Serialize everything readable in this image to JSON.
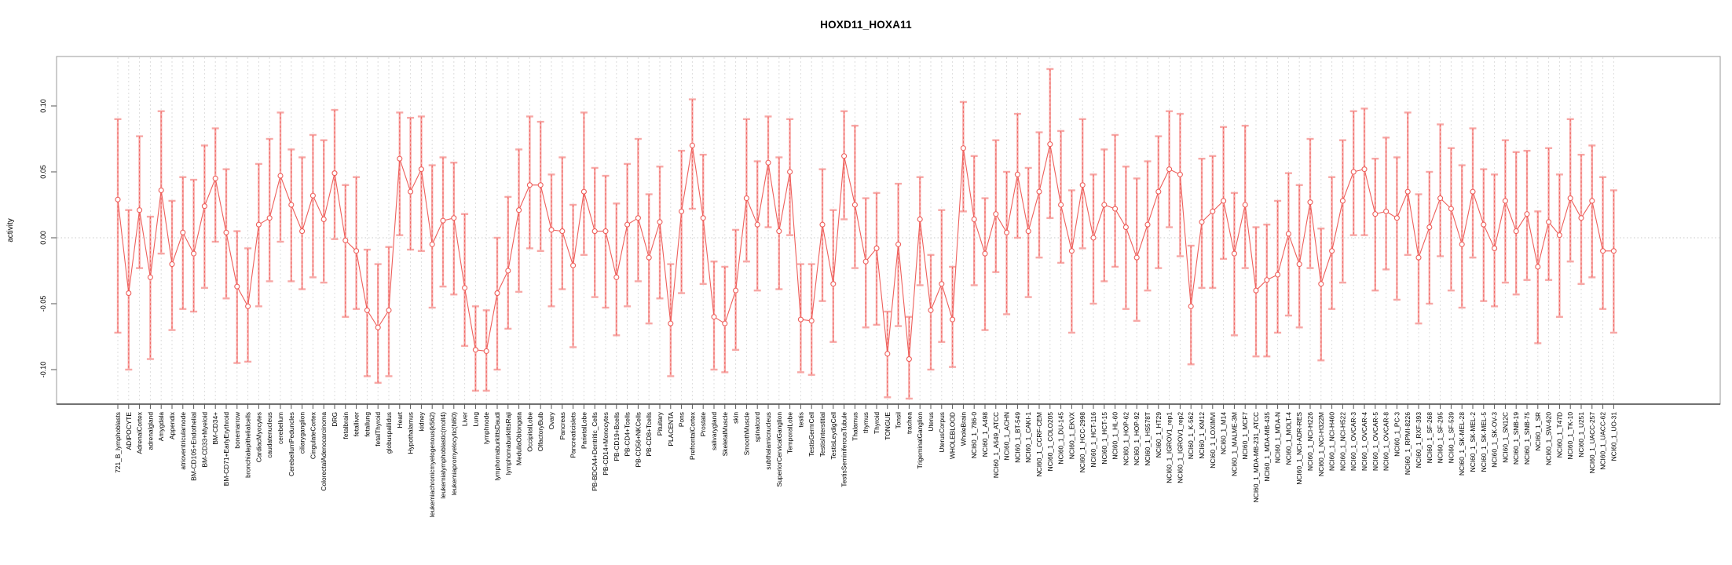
{
  "figure": {
    "title": "HOXD11_HOXA11"
  },
  "chart_data": {
    "type": "line",
    "title": "HOXD11_HOXA11",
    "xlabel": "",
    "ylabel": "activity",
    "ylim": [
      -0.126,
      0.138
    ],
    "yticks": [
      -0.1,
      -0.05,
      0.0,
      0.05,
      0.1
    ],
    "ytick_labels": [
      "-0.10",
      "-0.05",
      "0.00",
      "0.05",
      "0.10"
    ],
    "legend": "none",
    "marker": "open-circle",
    "error_bars": true,
    "grid": {
      "vertical_dashed_per_category": true,
      "dotted_zero_line": true
    },
    "colors": {
      "series": "#ee5f5b",
      "error_bar": "#f7a8a6",
      "grid": "#dddddd",
      "zero_line": "#c9c9c9",
      "frame": "#999999",
      "axis": "#555555",
      "text": "#000000"
    },
    "categories": [
      "721_B_lymphoblasts",
      "ADIPOCYTE",
      "AdrenalCortex",
      "adrenalgland",
      "Amygdala",
      "Appendix",
      "atrioventricularnode",
      "BM-CD105+Endothelial",
      "BM-CD33+Myeloid",
      "BM-CD34+",
      "BM-CD71+EarlyErythroid",
      "bonemarrow",
      "bronchialepithelialcells",
      "CardiacMyocytes",
      "caudatenucleus",
      "cerebellum",
      "CerebellumPeduncles",
      "ciliaryganglion",
      "CingulateCortex",
      "ColorectalAdenocarcinoma",
      "DRG",
      "fetalbrain",
      "fetalliver",
      "fetallung",
      "fetalThyroid",
      "globuspallidus",
      "Heart",
      "Hypothalamus",
      "kidney",
      "leukemiachronicmyelogenous(k562)",
      "leukemialymphoblastic(molt4)",
      "leukemiapromyelocytic(hl60)",
      "Liver",
      "Lung",
      "lymphnode",
      "lymphomaburkittsDaudi",
      "lymphomaburkittsRaji",
      "MedullaOblongata",
      "OccipitalLobe",
      "OlfactoryBulb",
      "Ovary",
      "Pancreas",
      "Pancreaticislets",
      "ParietalLobe",
      "PB-BDCA4+Dentritic_Cells",
      "PB-CD14+Monocytes",
      "PB-CD19+Bcells",
      "PB-CD4+Tcells",
      "PB-CD56+NKCells",
      "PB-CD8+Tcells",
      "Pituitary",
      "PLACENTA",
      "Pons",
      "PrefrontalCortex",
      "Prostate",
      "salivarygland",
      "SkeletalMuscle",
      "skin",
      "SmoothMuscle",
      "spinalcord",
      "subthalamicnucleus",
      "SuperiorCervicalGanglion",
      "TemporalLobe",
      "testis",
      "TestisGermCell",
      "TestisInterstitial",
      "TestisLeydigCell",
      "TestisSeminiferousTubule",
      "Thalamus",
      "thymus",
      "Thyroid",
      "TONGUE",
      "Tonsil",
      "trachea",
      "TrigeminalGanglion",
      "Uterus",
      "UterusCorpus",
      "WHOLEBLOOD",
      "WholeBrain",
      "NCI60_1_786-0",
      "NCI60_1_A498",
      "NCI60_1_A549_ATCC",
      "NCI60_1_ACHN",
      "NCI60_1_BT-549",
      "NCI60_1_CAKI-1",
      "NCI60_1_CCRF-CEM",
      "NCI60_1_COLO205",
      "NCI60_1_DU-145",
      "NCI60_1_EKVX",
      "NCI60_1_HCC-2998",
      "NCI60_1_HCT-116",
      "NCI60_1_HCT-15",
      "NCI60_1_HL-60",
      "NCI60_1_HOP-62",
      "NCI60_1_HOP-92",
      "NCI60_1_HS578T",
      "NCI60_1_HT29",
      "NCI60_1_IGROV1_rep1",
      "NCI60_1_IGROV1_rep2",
      "NCI60_1_K-562",
      "NCI60_1_KM12",
      "NCI60_1_LOXIMVI",
      "NCI60_1_M14",
      "NCI60_1_MALME-3M",
      "NCI60_1_MCF7",
      "NCI60_1_MDA-MB-231_ATCC",
      "NCI60_1_MDA-MB-435",
      "NCI60_1_MDA-N",
      "NCI60_1_MOLT-4",
      "NCI60_1_NCI-ADR-RES",
      "NCI60_1_NCI-H226",
      "NCI60_1_NCI-H322M",
      "NCI60_1_NCI-H460",
      "NCI60_1_NCI-H522",
      "NCI60_1_OVCAR-3",
      "NCI60_1_OVCAR-4",
      "NCI60_1_OVCAR-5",
      "NCI60_1_OVCAR-8",
      "NCI60_1_PC-3",
      "NCI60_1_RPMI-8226",
      "NCI60_1_RXF-393",
      "NCI60_1_SF-268",
      "NCI60_1_SF-295",
      "NCI60_1_SF-539",
      "NCI60_1_SK-MEL-28",
      "NCI60_1_SK-MEL-2",
      "NCI60_1_SK-MEL-5",
      "NCI60_1_SK-OV-3",
      "NCI60_1_SN12C",
      "NCI60_1_SNB-19",
      "NCI60_1_SNB-75",
      "NCI60_1_SR",
      "NCI60_1_SW-620",
      "NCI60_1_T47D",
      "NCI60_1_TK-10",
      "NCI60_1_U251",
      "NCI60_1_UACC-257",
      "NCI60_1_UACC-62",
      "NCI60_1_UO-31"
    ],
    "series": [
      {
        "name": "activity",
        "values": [
          0.029,
          -0.042,
          0.021,
          -0.03,
          0.036,
          -0.02,
          0.004,
          -0.012,
          0.024,
          0.045,
          0.004,
          -0.037,
          -0.052,
          0.01,
          0.015,
          0.047,
          0.025,
          0.005,
          0.032,
          0.014,
          0.049,
          -0.002,
          -0.01,
          -0.055,
          -0.068,
          -0.055,
          0.06,
          0.035,
          0.052,
          -0.005,
          0.013,
          0.015,
          -0.038,
          -0.085,
          -0.086,
          -0.042,
          -0.025,
          0.021,
          0.04,
          0.04,
          0.006,
          0.005,
          -0.021,
          0.035,
          0.005,
          0.005,
          -0.03,
          0.01,
          0.015,
          -0.015,
          0.012,
          -0.065,
          0.02,
          0.07,
          0.015,
          -0.06,
          -0.065,
          -0.04,
          0.03,
          0.01,
          0.057,
          0.005,
          0.05,
          -0.062,
          -0.063,
          0.01,
          -0.035,
          0.062,
          0.025,
          -0.018,
          -0.008,
          -0.088,
          -0.005,
          -0.092,
          0.014,
          -0.055,
          -0.035,
          -0.062,
          0.068,
          0.014,
          -0.012,
          0.018,
          0.004,
          0.048,
          0.005,
          0.035,
          0.071,
          0.025,
          -0.01,
          0.04,
          0.0,
          0.025,
          0.022,
          0.008,
          -0.015,
          0.01,
          0.035,
          0.052,
          0.048,
          -0.052,
          0.012,
          0.02,
          0.028,
          -0.012,
          0.025,
          -0.04,
          -0.032,
          -0.028,
          0.003,
          -0.02,
          0.027,
          -0.035,
          -0.01,
          0.028,
          0.05,
          0.052,
          0.018,
          0.02,
          0.015,
          0.035,
          -0.015,
          0.008,
          0.03,
          0.022,
          -0.005,
          0.035,
          0.01,
          -0.008,
          0.028,
          0.005,
          0.018,
          -0.022,
          0.012,
          0.002,
          0.03,
          0.015,
          0.028,
          -0.01,
          -0.01
        ],
        "error_low": [
          -0.072,
          -0.1,
          -0.023,
          -0.092,
          -0.012,
          -0.07,
          -0.054,
          -0.056,
          -0.038,
          -0.003,
          -0.046,
          -0.095,
          -0.094,
          -0.052,
          -0.033,
          -0.003,
          -0.033,
          -0.039,
          -0.03,
          -0.034,
          -0.001,
          -0.06,
          -0.054,
          -0.105,
          -0.11,
          -0.105,
          0.002,
          -0.009,
          -0.01,
          -0.053,
          -0.037,
          -0.043,
          -0.082,
          -0.116,
          -0.116,
          -0.1,
          -0.069,
          -0.041,
          -0.008,
          -0.01,
          -0.052,
          -0.039,
          -0.083,
          -0.013,
          -0.045,
          -0.053,
          -0.074,
          -0.052,
          -0.033,
          -0.065,
          -0.046,
          -0.105,
          -0.042,
          0.022,
          -0.035,
          -0.1,
          -0.102,
          -0.085,
          -0.018,
          -0.04,
          0.008,
          -0.039,
          0.002,
          -0.102,
          -0.104,
          -0.048,
          -0.079,
          0.014,
          -0.023,
          -0.068,
          -0.066,
          -0.121,
          -0.067,
          -0.122,
          -0.036,
          -0.1,
          -0.079,
          -0.098,
          0.02,
          -0.036,
          -0.07,
          -0.026,
          -0.058,
          0.0,
          -0.045,
          -0.015,
          0.015,
          -0.019,
          -0.072,
          -0.008,
          -0.05,
          -0.033,
          -0.022,
          -0.054,
          -0.063,
          -0.04,
          -0.023,
          0.008,
          -0.014,
          -0.096,
          -0.038,
          -0.038,
          -0.016,
          -0.074,
          -0.023,
          -0.09,
          -0.09,
          -0.072,
          -0.059,
          -0.068,
          -0.023,
          -0.093,
          -0.054,
          -0.034,
          0.002,
          0.002,
          -0.04,
          -0.024,
          -0.047,
          -0.013,
          -0.065,
          -0.05,
          -0.014,
          -0.04,
          -0.053,
          -0.015,
          -0.048,
          -0.052,
          -0.034,
          -0.043,
          -0.032,
          -0.08,
          -0.032,
          -0.06,
          -0.018,
          -0.035,
          -0.03,
          -0.054,
          -0.072
        ],
        "error_high": [
          0.09,
          0.021,
          0.077,
          0.016,
          0.096,
          0.028,
          0.046,
          0.044,
          0.07,
          0.083,
          0.052,
          0.005,
          -0.008,
          0.056,
          0.075,
          0.095,
          0.067,
          0.061,
          0.078,
          0.074,
          0.097,
          0.04,
          0.046,
          -0.009,
          -0.02,
          -0.007,
          0.095,
          0.091,
          0.092,
          0.055,
          0.061,
          0.057,
          0.018,
          -0.052,
          -0.055,
          0.0,
          0.031,
          0.067,
          0.092,
          0.088,
          0.048,
          0.061,
          0.025,
          0.095,
          0.053,
          0.047,
          0.026,
          0.056,
          0.075,
          0.033,
          0.054,
          -0.02,
          0.066,
          0.105,
          0.063,
          -0.018,
          -0.022,
          0.006,
          0.09,
          0.058,
          0.092,
          0.061,
          0.09,
          -0.02,
          -0.02,
          0.052,
          0.021,
          0.096,
          0.085,
          0.03,
          0.034,
          -0.056,
          0.041,
          -0.06,
          0.046,
          -0.013,
          0.021,
          -0.022,
          0.103,
          0.062,
          0.03,
          0.074,
          0.05,
          0.094,
          0.053,
          0.08,
          0.128,
          0.081,
          0.036,
          0.09,
          0.048,
          0.067,
          0.078,
          0.054,
          0.045,
          0.058,
          0.077,
          0.096,
          0.094,
          -0.006,
          0.06,
          0.062,
          0.084,
          0.034,
          0.085,
          0.008,
          0.01,
          0.028,
          0.049,
          0.04,
          0.075,
          0.007,
          0.046,
          0.074,
          0.096,
          0.098,
          0.06,
          0.076,
          0.061,
          0.095,
          0.033,
          0.05,
          0.086,
          0.068,
          0.055,
          0.083,
          0.052,
          0.048,
          0.074,
          0.065,
          0.066,
          0.02,
          0.068,
          0.048,
          0.09,
          0.063,
          0.07,
          0.046,
          0.036
        ]
      }
    ]
  }
}
